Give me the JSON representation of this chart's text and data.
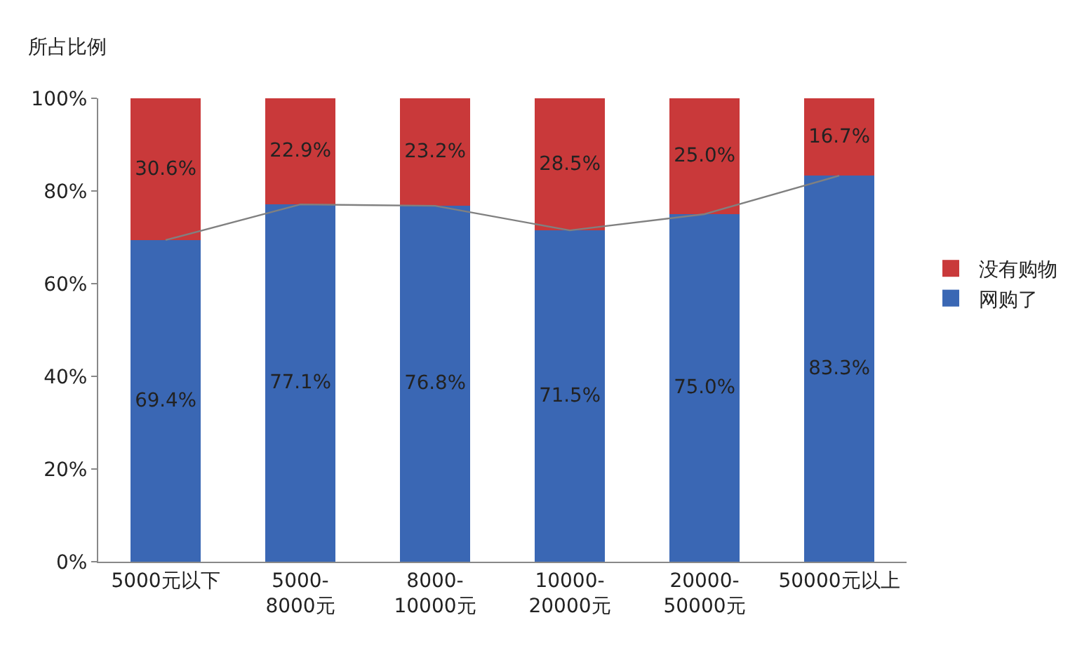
{
  "chart_data": {
    "type": "bar",
    "stacked": true,
    "ylabel": "所占比例",
    "categories": [
      "5000元以下",
      "5000-8000元",
      "8000-10000元",
      "10000-20000元",
      "20000-50000元",
      "50000元以上"
    ],
    "series": [
      {
        "name": "网购了",
        "color": "#3a67b4",
        "values": [
          69.4,
          77.1,
          76.8,
          71.5,
          75.0,
          83.3
        ],
        "value_labels": [
          "69.4%",
          "77.1%",
          "76.8%",
          "71.5%",
          "75.0%",
          "83.3%"
        ]
      },
      {
        "name": "没有购物",
        "color": "#c9393a",
        "values": [
          30.6,
          22.9,
          23.2,
          28.5,
          25.0,
          16.7
        ],
        "value_labels": [
          "30.6%",
          "22.9%",
          "23.2%",
          "28.5%",
          "25.0%",
          "16.7%"
        ]
      },
      {
        "type": "line",
        "color": "#808080",
        "values": [
          69.4,
          77.1,
          76.8,
          71.5,
          75.0,
          83.3
        ]
      }
    ],
    "ylim": [
      0,
      100
    ],
    "yticks": [
      {
        "value": 0,
        "label": "0%"
      },
      {
        "value": 20,
        "label": "20%"
      },
      {
        "value": 40,
        "label": "40%"
      },
      {
        "value": 60,
        "label": "60%"
      },
      {
        "value": 80,
        "label": "80%"
      },
      {
        "value": 100,
        "label": "100%"
      }
    ],
    "grid": false,
    "legend": "right"
  }
}
